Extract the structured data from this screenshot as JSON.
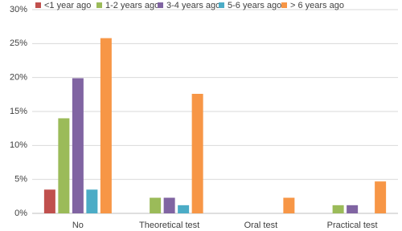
{
  "chart_data": {
    "type": "bar",
    "categories": [
      "No",
      "Theoretical test",
      "Oral test",
      "Practical test"
    ],
    "series": [
      {
        "name": "<1 year ago",
        "color": "#c0504d",
        "values": [
          3.5,
          0,
          0,
          0
        ]
      },
      {
        "name": "1-2 years ago",
        "color": "#9bbb59",
        "values": [
          14.0,
          2.3,
          0,
          1.2
        ]
      },
      {
        "name": "3-4 years ago",
        "color": "#8064a2",
        "values": [
          19.9,
          2.3,
          0,
          1.2
        ]
      },
      {
        "name": "5-6 years ago",
        "color": "#4bacc6",
        "values": [
          3.5,
          1.2,
          0,
          0
        ]
      },
      {
        "name": "> 6 years ago",
        "color": "#f79646",
        "values": [
          25.8,
          17.6,
          2.3,
          4.7
        ]
      }
    ],
    "ylim": [
      0,
      30
    ],
    "yticks": [
      {
        "value": 0,
        "label": "0%"
      },
      {
        "value": 5,
        "label": "5%"
      },
      {
        "value": 10,
        "label": "10%"
      },
      {
        "value": 15,
        "label": "15%"
      },
      {
        "value": 20,
        "label": "20%"
      },
      {
        "value": 25,
        "label": "25%"
      },
      {
        "value": 30,
        "label": "30%"
      }
    ],
    "grid": true,
    "legend": "top"
  }
}
